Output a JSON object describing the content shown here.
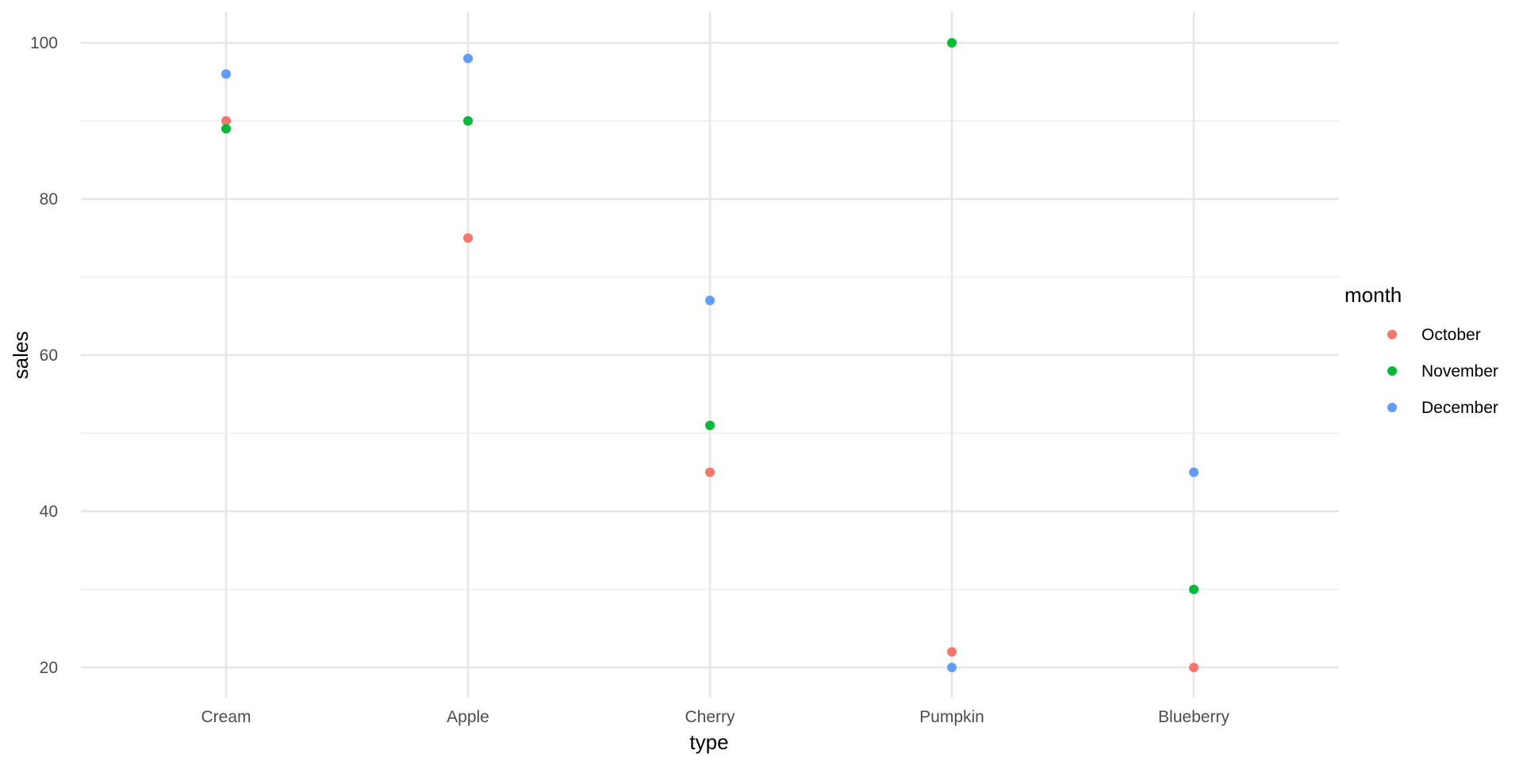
{
  "chart_data": {
    "type": "scatter",
    "title": "",
    "xlabel": "type",
    "ylabel": "sales",
    "categories": [
      "Cream",
      "Apple",
      "Cherry",
      "Pumpkin",
      "Blueberry"
    ],
    "y_ticks": [
      20,
      40,
      60,
      80,
      100
    ],
    "ylim": [
      16,
      104
    ],
    "grid": true,
    "legend": {
      "title": "month",
      "placement": "right",
      "entries": [
        "October",
        "November",
        "December"
      ]
    },
    "series": [
      {
        "name": "October",
        "color": "#F8766D",
        "values": [
          90,
          75,
          45,
          22,
          20
        ]
      },
      {
        "name": "November",
        "color": "#00BA38",
        "values": [
          89,
          90,
          51,
          100,
          30
        ]
      },
      {
        "name": "December",
        "color": "#619CFF",
        "values": [
          96,
          98,
          67,
          20,
          45
        ]
      }
    ]
  }
}
